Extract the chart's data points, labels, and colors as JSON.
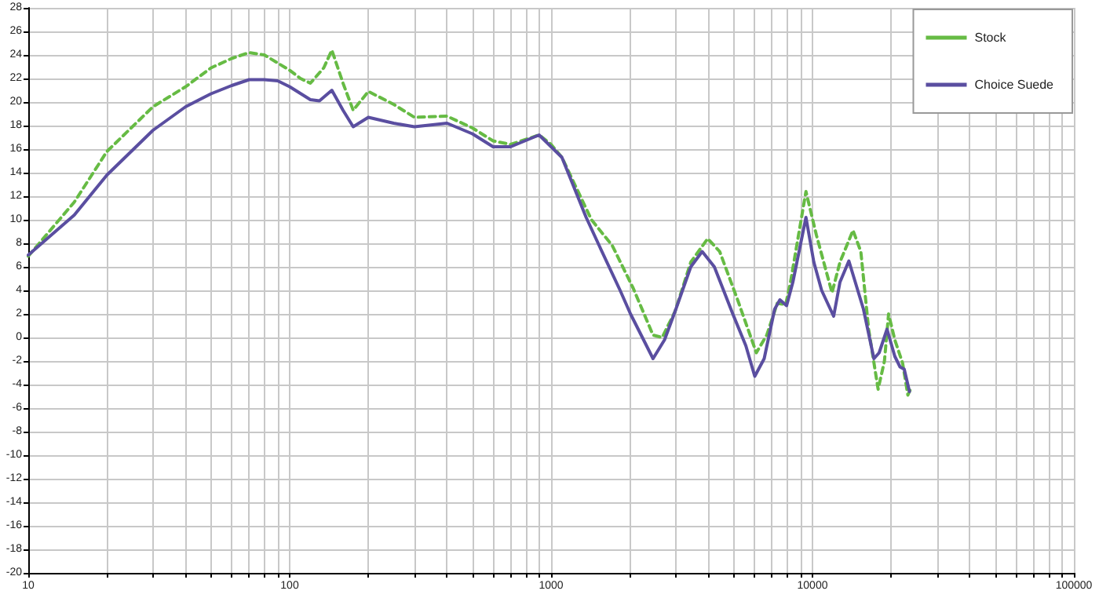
{
  "chart_data": {
    "type": "line",
    "xlim": [
      10,
      100000
    ],
    "xticks": [
      10,
      100,
      1000,
      10000,
      100000
    ],
    "ylim": [
      -20,
      28
    ],
    "yticks": [
      -20,
      -18,
      -16,
      -14,
      -12,
      -10,
      -8,
      -6,
      -4,
      -2,
      0,
      2,
      4,
      6,
      8,
      10,
      12,
      14,
      16,
      18,
      20,
      22,
      24,
      26,
      28
    ],
    "log": "x",
    "grid": true,
    "legend": "top right",
    "marker": "none",
    "series": [
      {
        "name": "Stock",
        "color": "#66bb44",
        "line_style": "dashed",
        "x": [
          10,
          15,
          20,
          30,
          40,
          50,
          60,
          70,
          80,
          100,
          110,
          120,
          135,
          145,
          160,
          175,
          200,
          250,
          300,
          400,
          500,
          600,
          700,
          900,
          1000,
          1100,
          1427,
          1715,
          2060,
          2455,
          2660,
          2980,
          3424,
          3974,
          4416,
          5190,
          6098,
          6685,
          7333,
          7900,
          8240,
          9442,
          10350,
          11880,
          12740,
          14290,
          15310,
          16400,
          17830,
          18850,
          19550,
          20650,
          22130,
          23170,
          23700
        ],
        "values": [
          6.9,
          11.5,
          15.8,
          19.6,
          21.3,
          22.9,
          23.7,
          24.2,
          24,
          22.7,
          22,
          21.6,
          22.9,
          24.4,
          21.6,
          19.3,
          20.9,
          19.8,
          18.7,
          18.8,
          17.8,
          16.7,
          16.4,
          17.2,
          16.4,
          15.3,
          10,
          7.8,
          4.2,
          0.2,
          0,
          2.2,
          6.4,
          8.4,
          7.3,
          3.1,
          -1.3,
          0.2,
          2.9,
          2.8,
          4.7,
          12.4,
          8.7,
          3.8,
          6.4,
          9.1,
          7.3,
          0.7,
          -4.4,
          -2,
          2,
          -0.2,
          -2.2,
          -4.9,
          -4.4
        ]
      },
      {
        "name": "Choice Suede",
        "color": "#5a4ea0",
        "line_style": "solid",
        "x": [
          10,
          15,
          20,
          30,
          40,
          50,
          60,
          70,
          80,
          90,
          100,
          120,
          130,
          145,
          160,
          175,
          200,
          250,
          300,
          400,
          500,
          600,
          700,
          900,
          1000,
          1100,
          1362,
          1528,
          1837,
          2013,
          2455,
          2717,
          2980,
          3424,
          3785,
          4213,
          4956,
          5560,
          6015,
          6535,
          7166,
          7506,
          7961,
          8414,
          9442,
          10120,
          10840,
          12050,
          12740,
          13780,
          15670,
          17180,
          17990,
          19280,
          20650,
          21620,
          22440,
          23500
        ],
        "values": [
          7,
          10.4,
          13.8,
          17.6,
          19.6,
          20.7,
          21.4,
          21.9,
          21.9,
          21.8,
          21.3,
          20.2,
          20.1,
          21,
          19.3,
          17.9,
          18.7,
          18.2,
          17.9,
          18.2,
          17.3,
          16.2,
          16.2,
          17.2,
          16.2,
          15.3,
          10.2,
          7.8,
          4,
          2,
          -1.8,
          -0.2,
          2.2,
          6,
          7.3,
          6,
          2,
          -0.7,
          -3.3,
          -1.8,
          2.4,
          3.2,
          2.7,
          4.7,
          10.2,
          6.4,
          4,
          1.8,
          4.7,
          6.5,
          2.4,
          -1.8,
          -1.3,
          0.7,
          -1.6,
          -2.5,
          -2.7,
          -4.6
        ]
      }
    ]
  }
}
